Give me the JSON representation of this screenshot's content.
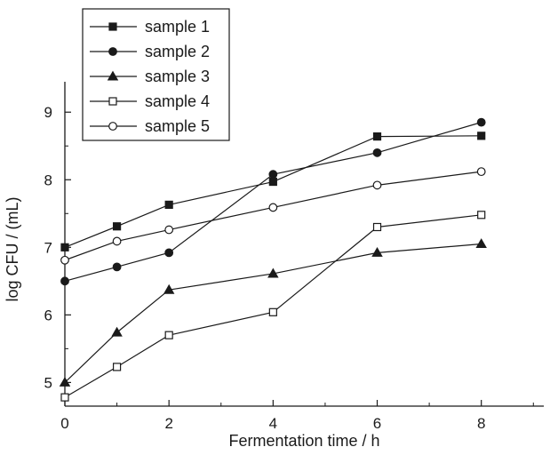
{
  "chart_data": {
    "type": "line",
    "xlabel": "Fermentation time / h",
    "ylabel": "log CFU / (mL)",
    "xlim": [
      0,
      9.2
    ],
    "ylim": [
      4.65,
      9.45
    ],
    "x_ticks": [
      0,
      2,
      4,
      6,
      8
    ],
    "y_ticks": [
      5,
      6,
      7,
      8,
      9
    ],
    "grid": false,
    "legend_position": "top-left",
    "x": [
      0,
      1,
      2,
      4,
      6,
      8
    ],
    "series": [
      {
        "name": "sample 1",
        "marker": "square-filled",
        "values": [
          7.0,
          7.31,
          7.63,
          7.97,
          8.64,
          8.65
        ]
      },
      {
        "name": "sample 2",
        "marker": "circle-filled",
        "values": [
          6.5,
          6.71,
          6.92,
          8.08,
          8.4,
          8.85
        ]
      },
      {
        "name": "sample 3",
        "marker": "triangle-filled",
        "values": [
          5.0,
          5.74,
          6.37,
          6.61,
          6.92,
          7.05
        ]
      },
      {
        "name": "sample 4",
        "marker": "square-open",
        "values": [
          4.78,
          5.23,
          5.7,
          6.04,
          7.3,
          7.48
        ]
      },
      {
        "name": "sample 5",
        "marker": "circle-open",
        "values": [
          6.81,
          7.09,
          7.26,
          7.59,
          7.92,
          8.12
        ]
      }
    ]
  }
}
